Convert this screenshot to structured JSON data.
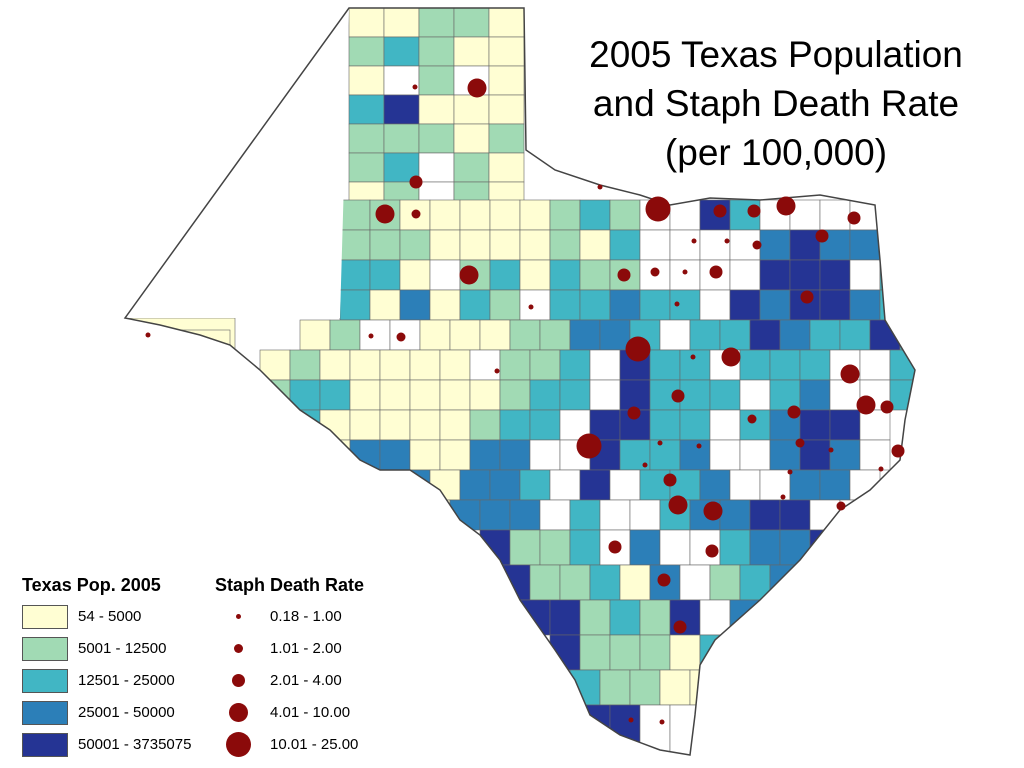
{
  "title_lines": [
    "2005 Texas Population",
    "and Staph Death Rate",
    "(per 100,000)"
  ],
  "colors": {
    "c1": "#fffed3",
    "c2": "#a1dab4",
    "c3": "#41b6c4",
    "c4": "#2c7fb8",
    "c5": "#253494",
    "none": "#ffffff",
    "dot": "#8b0a0a",
    "border": "#666666"
  },
  "legend": {
    "population": {
      "heading": "Texas Pop. 2005",
      "classes": [
        {
          "label": "54 - 5000",
          "color": "#fffed3"
        },
        {
          "label": "5001 - 12500",
          "color": "#a1dab4"
        },
        {
          "label": "12501 - 25000",
          "color": "#41b6c4"
        },
        {
          "label": "25001 - 50000",
          "color": "#2c7fb8"
        },
        {
          "label": "50001 - 3735075",
          "color": "#253494"
        }
      ]
    },
    "staph": {
      "heading": "Staph Death Rate",
      "classes": [
        {
          "label": "0.18 - 1.00"
        },
        {
          "label": "1.01 - 2.00"
        },
        {
          "label": "2.01 - 4.00"
        },
        {
          "label": "4.01 - 10.00"
        },
        {
          "label": "10.01 - 25.00"
        }
      ]
    }
  }
}
